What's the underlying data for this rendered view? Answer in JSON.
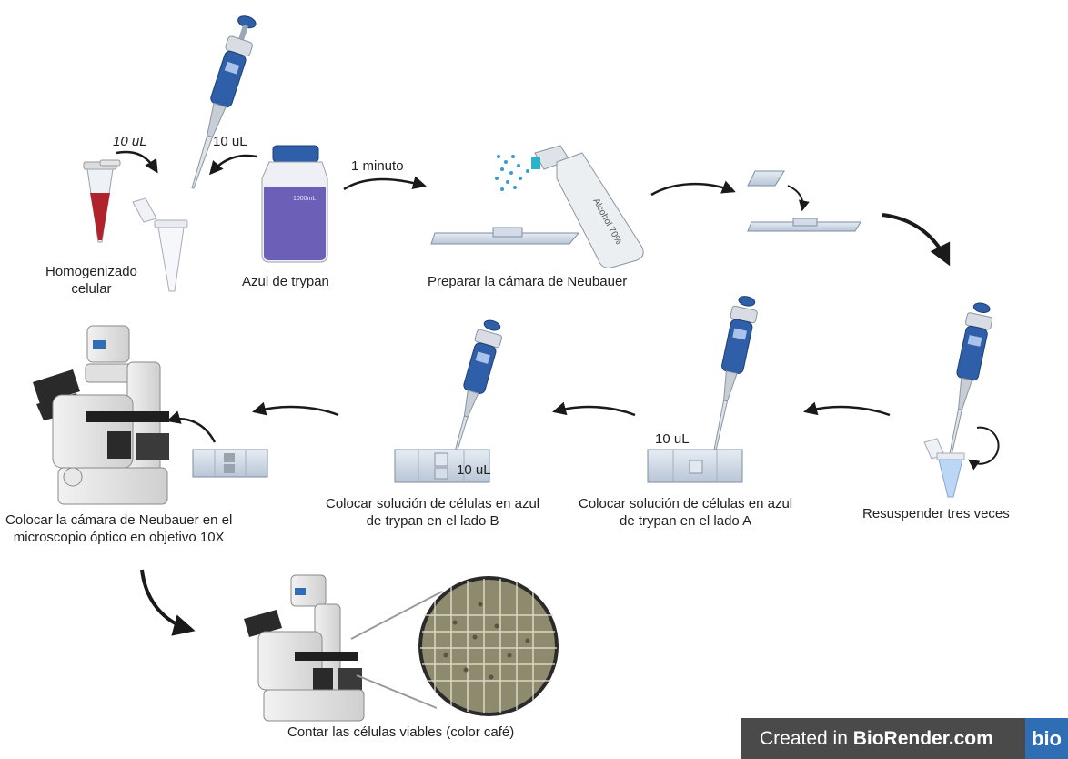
{
  "steps": {
    "homogenate": "Homogenizado\ncelular",
    "volume_1": "10 uL",
    "volume_2": "10 uL",
    "trypan": "Azul de trypan",
    "bottle_mark": "1000mL",
    "time": "1 minuto",
    "prepare": "Preparar la cámara de Neubauer",
    "spray_label": "Alcohol 70%",
    "resuspend": "Resuspender tres veces",
    "side_a": "Colocar solución de células en azul\nde trypan en el lado A",
    "volume_a": "10 uL",
    "side_b": "Colocar solución de células en azul\nde trypan en el lado B",
    "volume_b": "10 uL",
    "microscope": "Colocar la cámara de Neubauer en el\nmicroscopio óptico en objetivo 10X",
    "count": "Contar las células viables (color café)"
  },
  "badge": {
    "prefix": "Created in ",
    "brand": "BioRender.com",
    "logo": "bio"
  },
  "colors": {
    "pipette": "#2f5fa8",
    "trypan": "#6b5fb8",
    "cells": "#b0232a",
    "arrow": "#1a1a1a"
  }
}
